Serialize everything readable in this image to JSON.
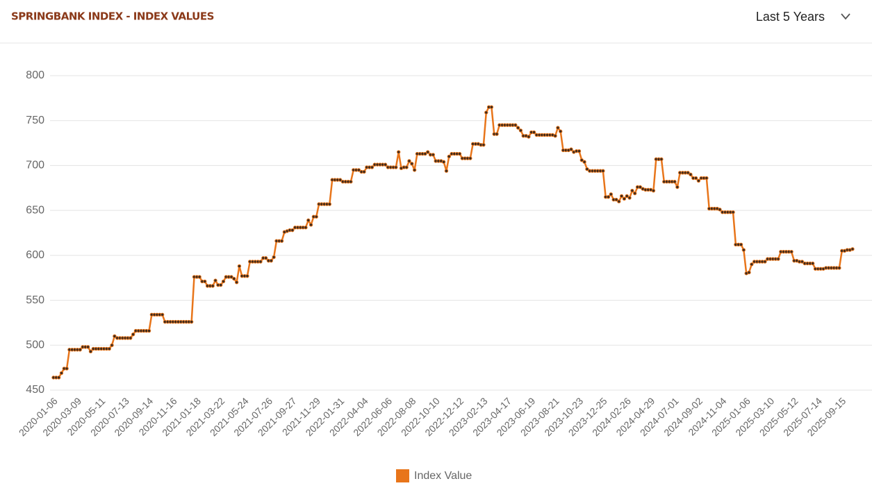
{
  "range_selector": "Last 5 Years",
  "chart_data": {
    "type": "line",
    "title": "SPRINGBANK INDEX - INDEX VALUES",
    "categories": [
      "2020-01-06",
      null,
      null,
      null,
      null,
      null,
      null,
      null,
      null,
      "2020-03-09",
      null,
      null,
      null,
      null,
      null,
      null,
      null,
      null,
      "2020-05-11",
      null,
      null,
      null,
      null,
      null,
      null,
      null,
      null,
      "2020-07-13",
      null,
      null,
      null,
      null,
      null,
      null,
      null,
      null,
      "2020-09-14",
      null,
      null,
      null,
      null,
      null,
      null,
      null,
      null,
      "2020-11-16",
      null,
      null,
      null,
      null,
      null,
      null,
      null,
      null,
      "2021-01-18",
      null,
      null,
      null,
      null,
      null,
      null,
      null,
      null,
      "2021-03-22",
      null,
      null,
      null,
      null,
      null,
      null,
      null,
      null,
      "2021-05-24",
      null,
      null,
      null,
      null,
      null,
      null,
      null,
      null,
      "2021-07-26",
      null,
      null,
      null,
      null,
      null,
      null,
      null,
      null,
      "2021-09-27",
      null,
      null,
      null,
      null,
      null,
      null,
      null,
      null,
      "2021-11-29",
      null,
      null,
      null,
      null,
      null,
      null,
      null,
      null,
      "2022-01-31",
      null,
      null,
      null,
      null,
      null,
      null,
      null,
      null,
      "2022-04-04",
      null,
      null,
      null,
      null,
      null,
      null,
      null,
      null,
      "2022-06-06",
      null,
      null,
      null,
      null,
      null,
      null,
      null,
      null,
      "2022-08-08",
      null,
      null,
      null,
      null,
      null,
      null,
      null,
      null,
      "2022-10-10",
      null,
      null,
      null,
      null,
      null,
      null,
      null,
      null,
      "2022-12-12",
      null,
      null,
      null,
      null,
      null,
      null,
      null,
      null,
      "2023-02-13",
      null,
      null,
      null,
      null,
      null,
      null,
      null,
      null,
      "2023-04-17",
      null,
      null,
      null,
      null,
      null,
      null,
      null,
      null,
      "2023-06-19",
      null,
      null,
      null,
      null,
      null,
      null,
      null,
      null,
      "2023-08-21",
      null,
      null,
      null,
      null,
      null,
      null,
      null,
      null,
      "2023-10-23",
      null,
      null,
      null,
      null,
      null,
      null,
      null,
      null,
      "2023-12-25",
      null,
      null,
      null,
      null,
      null,
      null,
      null,
      null,
      "2024-02-26",
      null,
      null,
      null,
      null,
      null,
      null,
      null,
      null,
      "2024-04-29",
      null,
      null,
      null,
      null,
      null,
      null,
      null,
      null,
      "2024-07-01",
      null,
      null,
      null,
      null,
      null,
      null,
      null,
      null,
      "2024-09-02",
      null,
      null,
      null,
      null,
      null,
      null,
      null,
      null,
      "2024-11-04",
      null,
      null,
      null,
      null,
      null,
      null,
      null,
      null,
      "2025-01-06",
      null,
      null,
      null,
      null,
      null,
      null,
      null,
      null,
      "2025-03-10",
      null,
      null,
      null,
      null,
      null,
      null,
      null,
      null,
      "2025-05-12",
      null,
      null,
      null,
      null,
      null,
      null,
      null,
      null,
      "2025-07-14",
      null,
      null,
      null,
      null,
      null,
      null,
      null,
      null,
      "2025-09-15",
      null,
      null,
      null,
      null
    ],
    "series": [
      {
        "name": "Index Value",
        "color": "#e8751a",
        "marker_color": "#3a2a20",
        "values": [
          464,
          464,
          464,
          469,
          474,
          474,
          495,
          495,
          495,
          495,
          495,
          498,
          498,
          498,
          493,
          496,
          496,
          496,
          496,
          496,
          496,
          496,
          500,
          510,
          508,
          508,
          508,
          508,
          508,
          508,
          512,
          516,
          516,
          516,
          516,
          516,
          516,
          534,
          534,
          534,
          534,
          534,
          526,
          526,
          526,
          526,
          526,
          526,
          526,
          526,
          526,
          526,
          526,
          576,
          576,
          576,
          571,
          571,
          566,
          566,
          566,
          572,
          567,
          567,
          571,
          576,
          576,
          576,
          574,
          570,
          588,
          577,
          577,
          577,
          593,
          593,
          593,
          593,
          593,
          597,
          597,
          594,
          594,
          598,
          616,
          616,
          616,
          626,
          627,
          628,
          628,
          631,
          631,
          631,
          631,
          631,
          639,
          634,
          643,
          643,
          657,
          657,
          657,
          657,
          657,
          684,
          684,
          684,
          684,
          682,
          682,
          682,
          682,
          695,
          695,
          695,
          693,
          693,
          698,
          698,
          698,
          701,
          701,
          701,
          701,
          701,
          698,
          698,
          698,
          698,
          715,
          697,
          698,
          698,
          705,
          702,
          695,
          713,
          713,
          713,
          713,
          715,
          712,
          712,
          705,
          705,
          705,
          704,
          694,
          710,
          713,
          713,
          713,
          713,
          708,
          708,
          708,
          708,
          724,
          724,
          724,
          723,
          723,
          759,
          765,
          765,
          735,
          735,
          745,
          745,
          745,
          745,
          745,
          745,
          745,
          742,
          739,
          733,
          733,
          732,
          737,
          737,
          734,
          734,
          734,
          734,
          734,
          734,
          734,
          733,
          742,
          738,
          717,
          717,
          717,
          718,
          715,
          716,
          716,
          706,
          704,
          696,
          694,
          694,
          694,
          694,
          694,
          694,
          665,
          665,
          668,
          662,
          662,
          660,
          666,
          663,
          666,
          664,
          672,
          669,
          676,
          676,
          674,
          673,
          673,
          673,
          672,
          707,
          707,
          707,
          682,
          682,
          682,
          682,
          682,
          676,
          692,
          692,
          692,
          692,
          690,
          686,
          686,
          683,
          686,
          686,
          686,
          652,
          652,
          652,
          652,
          651,
          648,
          648,
          648,
          648,
          648,
          612,
          612,
          612,
          606,
          580,
          581,
          590,
          593,
          593,
          593,
          593,
          593,
          596,
          596,
          596,
          596,
          596,
          604,
          604,
          604,
          604,
          604,
          594,
          594,
          593,
          593,
          591,
          591,
          591,
          591,
          585,
          585,
          585,
          585,
          586,
          586,
          586,
          586,
          586,
          586,
          605,
          605,
          606,
          606,
          607
        ]
      }
    ],
    "ylim": [
      450,
      800
    ],
    "yticks": [
      450,
      500,
      550,
      600,
      650,
      700,
      750,
      800
    ],
    "grid": true,
    "legend": "bottom"
  }
}
